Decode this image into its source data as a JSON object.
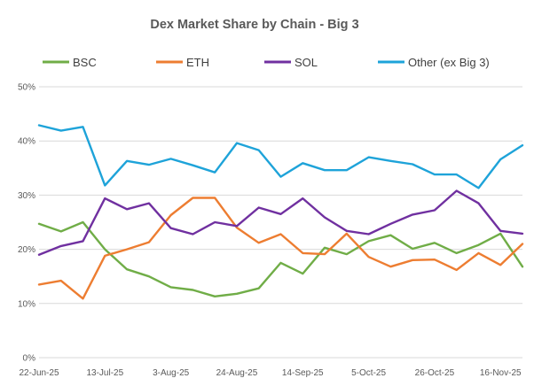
{
  "chart_data": {
    "type": "line",
    "title": "Dex Market Share by Chain - Big 3",
    "xlabel": "",
    "ylabel": "",
    "ylim": [
      0,
      50
    ],
    "yticks": [
      0,
      10,
      20,
      30,
      40,
      50
    ],
    "ytick_labels": [
      "0%",
      "10%",
      "20%",
      "30%",
      "40%",
      "50%"
    ],
    "grid": true,
    "legend_position": "top",
    "x": [
      "22-Jun-25",
      "29-Jun-25",
      "6-Jul-25",
      "13-Jul-25",
      "20-Jul-25",
      "27-Jul-25",
      "3-Aug-25",
      "10-Aug-25",
      "17-Aug-25",
      "24-Aug-25",
      "31-Aug-25",
      "7-Sep-25",
      "14-Sep-25",
      "21-Sep-25",
      "28-Sep-25",
      "5-Oct-25",
      "12-Oct-25",
      "19-Oct-25",
      "26-Oct-25",
      "2-Nov-25",
      "9-Nov-25",
      "16-Nov-25",
      "23-Nov-25"
    ],
    "xtick_labels": [
      "22-Jun-25",
      "13-Jul-25",
      "3-Aug-25",
      "24-Aug-25",
      "14-Sep-25",
      "5-Oct-25",
      "26-Oct-25",
      "16-Nov-25"
    ],
    "series": [
      {
        "name": "BSC",
        "color": "#70ad47",
        "values": [
          24.7,
          23.3,
          25.0,
          20.0,
          16.3,
          15.0,
          13.0,
          12.5,
          11.3,
          11.8,
          12.8,
          17.5,
          15.5,
          20.3,
          19.1,
          21.5,
          22.6,
          20.1,
          21.2,
          19.3,
          20.8,
          22.9,
          16.8
        ]
      },
      {
        "name": "ETH",
        "color": "#ed7d31",
        "values": [
          13.5,
          14.2,
          10.9,
          18.8,
          20.0,
          21.3,
          26.3,
          29.5,
          29.5,
          24.0,
          21.2,
          22.8,
          19.3,
          19.1,
          22.9,
          18.6,
          16.8,
          18.0,
          18.1,
          16.2,
          19.3,
          17.1,
          21.0
        ]
      },
      {
        "name": "SOL",
        "color": "#7030a0",
        "values": [
          19.0,
          20.6,
          21.5,
          29.4,
          27.4,
          28.5,
          23.9,
          22.8,
          25.0,
          24.3,
          27.7,
          26.5,
          29.4,
          25.9,
          23.4,
          22.8,
          24.7,
          26.4,
          27.2,
          30.8,
          28.5,
          23.4,
          22.9
        ]
      },
      {
        "name": "Other (ex Big 3)",
        "color": "#1ea3d9",
        "values": [
          42.9,
          41.9,
          42.6,
          31.8,
          36.3,
          35.6,
          36.7,
          35.5,
          34.2,
          39.6,
          38.3,
          33.4,
          35.9,
          34.6,
          34.6,
          37.0,
          36.3,
          35.7,
          33.8,
          33.8,
          31.3,
          36.6,
          39.2
        ]
      }
    ]
  }
}
